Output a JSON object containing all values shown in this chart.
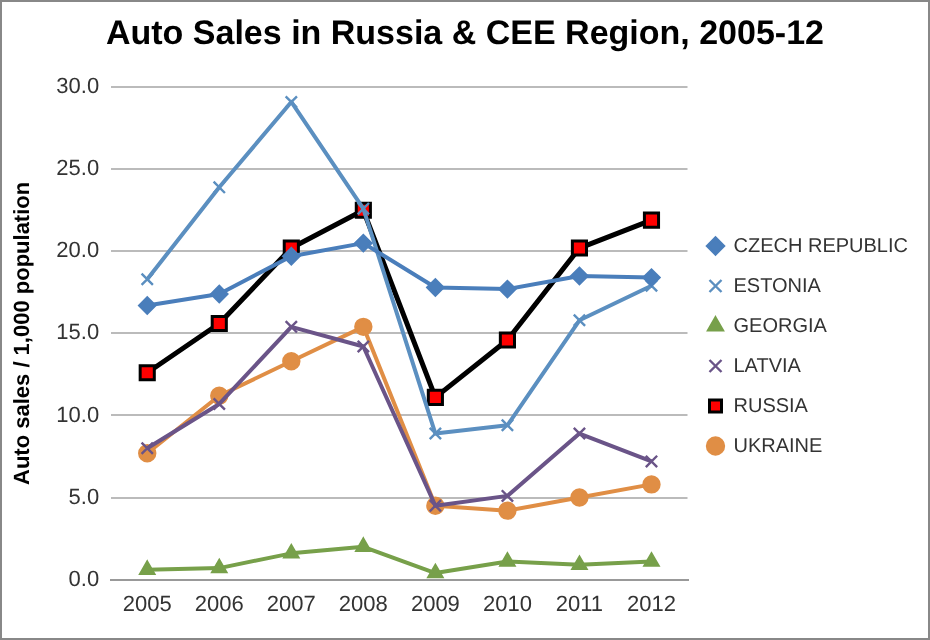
{
  "chart_data": {
    "type": "line",
    "title": "Auto Sales in Russia & CEE Region, 2005-12",
    "ylabel": "Auto sales / 1,000 population",
    "categories": [
      "2005",
      "2006",
      "2007",
      "2008",
      "2009",
      "2010",
      "2011",
      "2012"
    ],
    "series": [
      {
        "name": "CZECH REPUBLIC",
        "color": "#4a7ebb",
        "marker": "diamond",
        "values": [
          16.7,
          17.4,
          19.7,
          20.5,
          17.8,
          17.7,
          18.5,
          18.4
        ]
      },
      {
        "name": "ESTONIA",
        "color": "#5b8fc0",
        "marker": "cross",
        "values": [
          18.3,
          23.9,
          29.1,
          22.6,
          8.9,
          9.4,
          15.8,
          17.9
        ]
      },
      {
        "name": "GEORGIA",
        "color": "#77a04a",
        "marker": "triangle",
        "values": [
          0.6,
          0.7,
          1.6,
          2.0,
          0.4,
          1.1,
          0.9,
          1.1
        ]
      },
      {
        "name": "LATVIA",
        "color": "#6a5488",
        "marker": "cross",
        "values": [
          8.0,
          10.7,
          15.4,
          14.2,
          4.5,
          5.1,
          8.9,
          7.2
        ]
      },
      {
        "name": "RUSSIA",
        "color": "#000000",
        "marker": "square",
        "values": [
          12.6,
          15.6,
          20.2,
          22.5,
          11.1,
          14.6,
          20.2,
          21.9
        ]
      },
      {
        "name": "UKRAINE",
        "color": "#e08e45",
        "marker": "circle",
        "values": [
          7.7,
          11.2,
          13.3,
          15.4,
          4.5,
          4.2,
          5.0,
          5.8
        ]
      }
    ],
    "ylim": [
      0,
      30
    ],
    "yticks": [
      {
        "value": 0,
        "label": "0.0"
      },
      {
        "value": 5,
        "label": "5.0"
      },
      {
        "value": 10,
        "label": "10.0"
      },
      {
        "value": 15,
        "label": "15.0"
      },
      {
        "value": 20,
        "label": "20.0"
      },
      {
        "value": 25,
        "label": "25.0"
      },
      {
        "value": 30,
        "label": "30.0"
      }
    ],
    "grid": "y",
    "legend": "right"
  }
}
